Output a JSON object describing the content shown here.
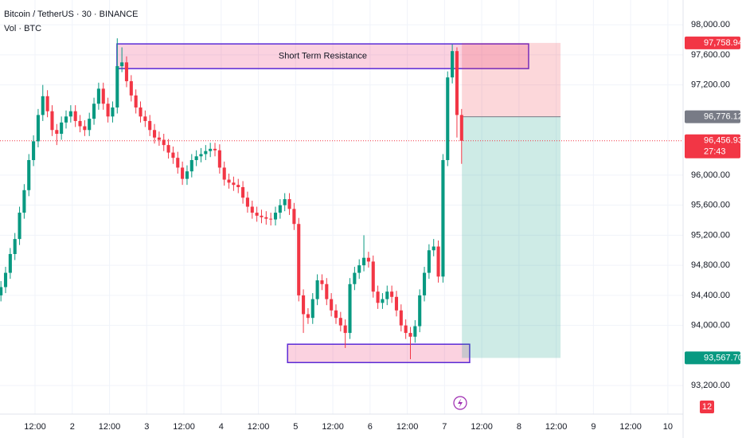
{
  "chart_data": {
    "type": "candlestick",
    "title": "Bitcoin / TetherUS · 30 · BINANCE",
    "subtitle": "Vol · BTC",
    "up_color": "#089981",
    "down_color": "#f23645",
    "x": [
      1,
      2.5,
      4,
      5.5,
      7,
      8.5,
      10,
      11.5,
      13,
      14.5,
      16,
      17.5,
      19,
      20.5,
      22,
      23.5,
      25,
      26.5,
      28,
      29.5,
      31,
      32.5,
      34,
      35.5,
      37,
      38.5,
      40,
      41.5,
      43,
      44.5,
      46,
      47.5,
      49,
      50.5,
      52,
      53.5,
      55,
      56.5,
      58,
      59.5,
      61,
      62.5,
      64,
      65.5,
      67,
      68.5,
      70,
      71.5,
      73,
      74.5,
      76,
      77.5,
      79,
      80.5,
      82,
      83.5,
      85,
      86.5,
      88,
      89.5,
      91,
      92.5,
      94,
      95.5,
      97,
      98.5,
      100,
      101.5,
      103,
      104.5,
      106,
      107.5,
      109,
      110.5,
      112,
      113.5,
      115,
      116.5,
      118,
      119.5,
      121,
      122.5,
      124,
      125.5,
      127,
      128.5,
      130,
      131.5,
      133,
      134.5,
      136,
      137.5,
      139,
      140.5,
      142,
      143.5,
      145,
      146.5,
      148,
      149.5
    ],
    "open": [
      94400,
      94510,
      94700,
      94950,
      95150,
      95500,
      95800,
      96200,
      96450,
      96800,
      97050,
      96850,
      96600,
      96550,
      96700,
      96780,
      96850,
      96720,
      96650,
      96600,
      96750,
      96950,
      97150,
      96950,
      96780,
      96900,
      97450,
      97500,
      97250,
      97060,
      96900,
      96780,
      96720,
      96600,
      96500,
      96470,
      96400,
      96300,
      96230,
      96100,
      95950,
      96050,
      96200,
      96250,
      96280,
      96320,
      96350,
      96330,
      96100,
      95940,
      95900,
      95870,
      95840,
      95700,
      95580,
      95500,
      95460,
      95440,
      95420,
      95410,
      95500,
      95600,
      95680,
      95550,
      95350,
      94400,
      94150,
      94100,
      94350,
      94600,
      94550,
      94350,
      94200,
      94100,
      94000,
      93900,
      94550,
      94700,
      94800,
      94900,
      94850,
      94450,
      94300,
      94350,
      94450,
      94380,
      94200,
      94000,
      93900,
      93850,
      93990,
      94400,
      94700,
      95000,
      95050,
      94650,
      96200,
      97300,
      97650,
      96800
    ],
    "high": [
      94590,
      94780,
      95030,
      95230,
      95580,
      95880,
      96280,
      96530,
      96880,
      97200,
      97130,
      96930,
      96680,
      96780,
      96860,
      96930,
      96930,
      96800,
      96730,
      96830,
      97030,
      97230,
      97230,
      97030,
      96980,
      97820,
      97700,
      97580,
      97330,
      97140,
      96980,
      96860,
      96800,
      96680,
      96580,
      96550,
      96480,
      96380,
      96310,
      96180,
      96130,
      96280,
      96330,
      96360,
      96400,
      96430,
      96430,
      96410,
      96180,
      96020,
      95980,
      95950,
      95920,
      95780,
      95660,
      95580,
      95540,
      95520,
      95500,
      95580,
      95680,
      95760,
      95760,
      95630,
      95430,
      94480,
      94230,
      94430,
      94680,
      94680,
      94630,
      94430,
      94280,
      94180,
      94080,
      94630,
      94780,
      94880,
      95200,
      94980,
      94930,
      94530,
      94430,
      94530,
      94530,
      94460,
      94280,
      94080,
      93980,
      94070,
      94480,
      94780,
      95080,
      95150,
      95130,
      96280,
      97380,
      97740,
      97700,
      96880
    ],
    "low": [
      94320,
      94430,
      94620,
      94870,
      95070,
      95420,
      95720,
      96120,
      96370,
      96720,
      96770,
      96520,
      96400,
      96470,
      96620,
      96700,
      96640,
      96570,
      96520,
      96520,
      96670,
      96870,
      96870,
      96700,
      96700,
      96820,
      97370,
      97170,
      96980,
      96820,
      96700,
      96640,
      96520,
      96420,
      96390,
      96320,
      96220,
      96150,
      96020,
      95870,
      95870,
      95970,
      96120,
      96170,
      96200,
      96240,
      96250,
      96020,
      95860,
      95820,
      95790,
      95760,
      95620,
      95500,
      95420,
      95380,
      95360,
      95340,
      95330,
      95330,
      95420,
      95520,
      95470,
      95270,
      94320,
      93900,
      94020,
      94020,
      94270,
      94470,
      94270,
      94120,
      94020,
      93920,
      93700,
      93820,
      94470,
      94620,
      94720,
      94770,
      94370,
      94220,
      94220,
      94270,
      94300,
      94120,
      93920,
      93820,
      93550,
      93770,
      93910,
      94320,
      94620,
      94920,
      94570,
      94570,
      96120,
      97220,
      96500,
      96150
    ],
    "close": [
      94510,
      94700,
      94950,
      95150,
      95500,
      95800,
      96200,
      96450,
      96800,
      97050,
      96850,
      96600,
      96550,
      96700,
      96780,
      96850,
      96720,
      96650,
      96600,
      96750,
      96950,
      97150,
      96950,
      96780,
      96900,
      97450,
      97500,
      97250,
      97060,
      96900,
      96780,
      96720,
      96600,
      96500,
      96470,
      96400,
      96300,
      96230,
      96100,
      95950,
      96050,
      96200,
      96250,
      96280,
      96320,
      96350,
      96330,
      96100,
      95940,
      95900,
      95870,
      95840,
      95700,
      95580,
      95500,
      95460,
      95440,
      95420,
      95410,
      95500,
      95600,
      95680,
      95550,
      95350,
      94400,
      94150,
      94100,
      94350,
      94600,
      94550,
      94350,
      94200,
      94100,
      94000,
      93900,
      94550,
      94700,
      94800,
      94900,
      94850,
      94450,
      94300,
      94350,
      94450,
      94380,
      94200,
      94000,
      93900,
      93850,
      93990,
      94400,
      94700,
      95000,
      95050,
      94650,
      96200,
      97300,
      97650,
      96800,
      96456.93
    ],
    "xlim": [
      0.7,
      220.9
    ],
    "xticks": [
      {
        "value": 12,
        "label": "12:00"
      },
      {
        "value": 24,
        "label": "2"
      },
      {
        "value": 36,
        "label": "12:00"
      },
      {
        "value": 48,
        "label": "3"
      },
      {
        "value": 60,
        "label": "12:00"
      },
      {
        "value": 72,
        "label": "4"
      },
      {
        "value": 84,
        "label": "12:00"
      },
      {
        "value": 96,
        "label": "5"
      },
      {
        "value": 108,
        "label": "12:00"
      },
      {
        "value": 120,
        "label": "6"
      },
      {
        "value": 132,
        "label": "12:00"
      },
      {
        "value": 144,
        "label": "7"
      },
      {
        "value": 156,
        "label": "12:00"
      },
      {
        "value": 168,
        "label": "8"
      },
      {
        "value": 180,
        "label": "12:00"
      },
      {
        "value": 192,
        "label": "9"
      },
      {
        "value": 204,
        "label": "12:00"
      },
      {
        "value": 216,
        "label": "10"
      }
    ],
    "ylim": [
      92820,
      98330
    ],
    "yticks": [
      {
        "value": 98000,
        "label": "98,000.00"
      },
      {
        "value": 97600,
        "label": "97,600.00"
      },
      {
        "value": 97200,
        "label": "97,200.00"
      },
      {
        "value": 96000,
        "label": "96,000.00"
      },
      {
        "value": 95600,
        "label": "95,600.00"
      },
      {
        "value": 95200,
        "label": "95,200.00"
      },
      {
        "value": 94800,
        "label": "94,800.00"
      },
      {
        "value": 94400,
        "label": "94,400.00"
      },
      {
        "value": 94000,
        "label": "94,000.00"
      },
      {
        "value": 93200,
        "label": "93,200.00"
      }
    ],
    "zones": [
      {
        "label": "Short Term Resistance",
        "x": [
          38.4,
          171.1
        ],
        "y": [
          97417,
          97746
        ]
      },
      {
        "x": [
          93.4,
          152.1
        ],
        "y": [
          93506,
          93750
        ]
      }
    ],
    "position": {
      "x": [
        149.6,
        181.4
      ],
      "target": {
        "value": 97758.94,
        "label": "97,758.94"
      },
      "entry": {
        "value": 96776.12,
        "label": "96,776.12"
      },
      "stop": {
        "value": 93567.7,
        "label": "93,567.70"
      }
    },
    "last_price": {
      "value": 96456.93,
      "label": "96,456.93"
    },
    "countdown": "27:43",
    "alerts_badge": 12
  }
}
